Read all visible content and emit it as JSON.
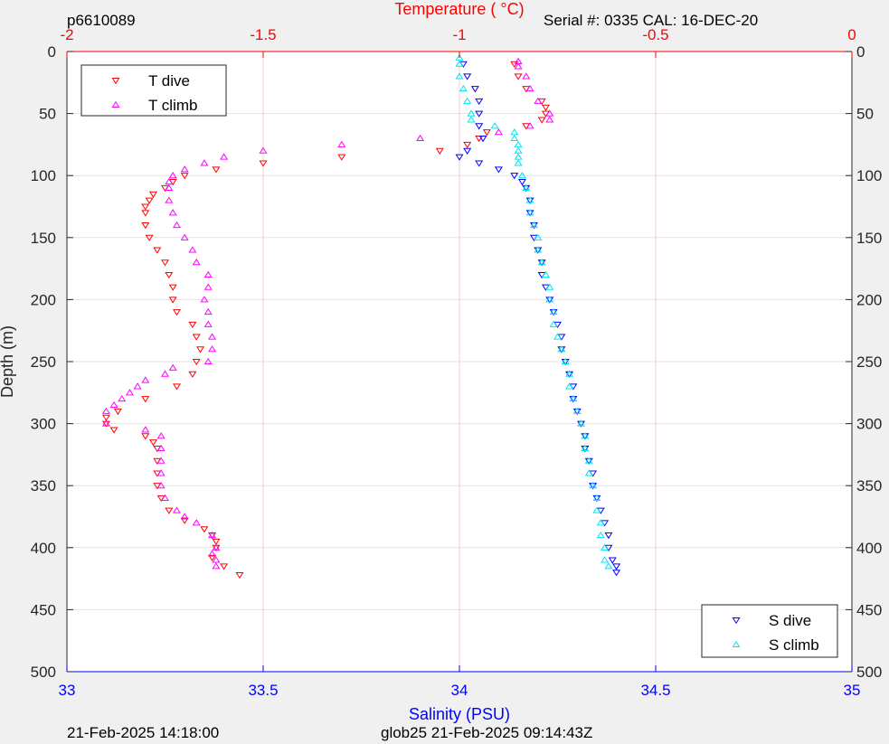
{
  "header": {
    "glider_id": "p6610089",
    "serial_cal": "Serial #: 0335  CAL: 16-DEC-20"
  },
  "footer": {
    "left_timestamp": "21-Feb-2025 14:18:00",
    "center_label": "glob25 21-Feb-2025 09:14:43Z"
  },
  "colors": {
    "t_dive": "#ff0000",
    "t_climb": "#ff00ff",
    "s_dive": "#0000ff",
    "s_climb": "#00e5ee",
    "temperature_axis": "#ff0000",
    "salinity_axis": "#0000ff"
  },
  "chart_data": {
    "type": "scatter",
    "y_axis": {
      "label": "Depth (m)",
      "range": [
        0,
        500
      ],
      "reversed": true,
      "ticks": [
        0,
        50,
        100,
        150,
        200,
        250,
        300,
        350,
        400,
        450,
        500
      ]
    },
    "x_axis_top": {
      "label": "Temperature (    °C)",
      "range": [
        -2,
        0
      ],
      "ticks": [
        -2,
        -1.5,
        -1,
        -0.5,
        0
      ],
      "tick_labels": [
        "-2",
        "-1.5",
        "-1",
        "-0.5",
        "0"
      ]
    },
    "x_axis_bottom": {
      "label": "Salinity (PSU)",
      "range": [
        33,
        35
      ],
      "ticks": [
        33,
        33.5,
        34,
        34.5,
        35
      ],
      "tick_labels": [
        "33",
        "33.5",
        "34",
        "34.5",
        "35"
      ]
    },
    "grid": true,
    "legends": [
      {
        "placement": "top-left",
        "entries": [
          "T dive",
          "T climb"
        ]
      },
      {
        "placement": "bottom-right",
        "entries": [
          "S dive",
          "S climb"
        ]
      }
    ],
    "series": [
      {
        "name": "T dive",
        "axis": "temperature",
        "marker": "triangle-down",
        "points": [
          [
            10,
            -0.86
          ],
          [
            20,
            -0.85
          ],
          [
            30,
            -0.83
          ],
          [
            40,
            -0.79
          ],
          [
            45,
            -0.78
          ],
          [
            50,
            -0.78
          ],
          [
            55,
            -0.79
          ],
          [
            60,
            -0.83
          ],
          [
            65,
            -0.93
          ],
          [
            70,
            -0.95
          ],
          [
            75,
            -0.98
          ],
          [
            80,
            -1.05
          ],
          [
            85,
            -1.3
          ],
          [
            90,
            -1.5
          ],
          [
            95,
            -1.62
          ],
          [
            100,
            -1.7
          ],
          [
            105,
            -1.73
          ],
          [
            110,
            -1.75
          ],
          [
            115,
            -1.78
          ],
          [
            120,
            -1.79
          ],
          [
            125,
            -1.8
          ],
          [
            130,
            -1.8
          ],
          [
            140,
            -1.8
          ],
          [
            150,
            -1.79
          ],
          [
            160,
            -1.77
          ],
          [
            170,
            -1.75
          ],
          [
            180,
            -1.74
          ],
          [
            190,
            -1.73
          ],
          [
            200,
            -1.73
          ],
          [
            210,
            -1.72
          ],
          [
            220,
            -1.68
          ],
          [
            230,
            -1.67
          ],
          [
            240,
            -1.66
          ],
          [
            250,
            -1.67
          ],
          [
            260,
            -1.68
          ],
          [
            270,
            -1.72
          ],
          [
            280,
            -1.8
          ],
          [
            290,
            -1.87
          ],
          [
            295,
            -1.9
          ],
          [
            300,
            -1.9
          ],
          [
            305,
            -1.88
          ],
          [
            310,
            -1.8
          ],
          [
            315,
            -1.78
          ],
          [
            320,
            -1.77
          ],
          [
            330,
            -1.77
          ],
          [
            340,
            -1.77
          ],
          [
            350,
            -1.77
          ],
          [
            360,
            -1.76
          ],
          [
            370,
            -1.74
          ],
          [
            378,
            -1.7
          ],
          [
            385,
            -1.65
          ],
          [
            390,
            -1.63
          ],
          [
            395,
            -1.62
          ],
          [
            400,
            -1.62
          ],
          [
            408,
            -1.63
          ],
          [
            415,
            -1.6
          ],
          [
            422,
            -1.56
          ]
        ]
      },
      {
        "name": "T climb",
        "axis": "temperature",
        "marker": "triangle-up",
        "points": [
          [
            8,
            -0.85
          ],
          [
            12,
            -0.85
          ],
          [
            20,
            -0.83
          ],
          [
            30,
            -0.82
          ],
          [
            40,
            -0.8
          ],
          [
            50,
            -0.77
          ],
          [
            55,
            -0.77
          ],
          [
            60,
            -0.82
          ],
          [
            65,
            -0.9
          ],
          [
            70,
            -1.1
          ],
          [
            75,
            -1.3
          ],
          [
            80,
            -1.5
          ],
          [
            85,
            -1.6
          ],
          [
            90,
            -1.65
          ],
          [
            95,
            -1.7
          ],
          [
            100,
            -1.73
          ],
          [
            105,
            -1.74
          ],
          [
            110,
            -1.74
          ],
          [
            120,
            -1.74
          ],
          [
            130,
            -1.73
          ],
          [
            140,
            -1.72
          ],
          [
            150,
            -1.7
          ],
          [
            160,
            -1.68
          ],
          [
            170,
            -1.67
          ],
          [
            180,
            -1.64
          ],
          [
            190,
            -1.64
          ],
          [
            200,
            -1.65
          ],
          [
            210,
            -1.64
          ],
          [
            220,
            -1.64
          ],
          [
            230,
            -1.63
          ],
          [
            240,
            -1.63
          ],
          [
            250,
            -1.64
          ],
          [
            255,
            -1.73
          ],
          [
            260,
            -1.75
          ],
          [
            265,
            -1.8
          ],
          [
            270,
            -1.82
          ],
          [
            275,
            -1.84
          ],
          [
            280,
            -1.86
          ],
          [
            285,
            -1.88
          ],
          [
            290,
            -1.9
          ],
          [
            300,
            -1.9
          ],
          [
            305,
            -1.8
          ],
          [
            310,
            -1.76
          ],
          [
            320,
            -1.76
          ],
          [
            330,
            -1.76
          ],
          [
            340,
            -1.76
          ],
          [
            350,
            -1.76
          ],
          [
            360,
            -1.75
          ],
          [
            370,
            -1.72
          ],
          [
            375,
            -1.7
          ],
          [
            380,
            -1.67
          ],
          [
            390,
            -1.63
          ],
          [
            400,
            -1.62
          ],
          [
            405,
            -1.63
          ],
          [
            410,
            -1.62
          ],
          [
            415,
            -1.62
          ]
        ]
      },
      {
        "name": "S dive",
        "axis": "salinity",
        "marker": "triangle-down",
        "points": [
          [
            10,
            34.01
          ],
          [
            20,
            34.02
          ],
          [
            30,
            34.04
          ],
          [
            40,
            34.05
          ],
          [
            50,
            34.05
          ],
          [
            60,
            34.05
          ],
          [
            70,
            34.06
          ],
          [
            80,
            34.02
          ],
          [
            85,
            34.0
          ],
          [
            90,
            34.05
          ],
          [
            95,
            34.1
          ],
          [
            100,
            34.14
          ],
          [
            105,
            34.16
          ],
          [
            110,
            34.17
          ],
          [
            120,
            34.18
          ],
          [
            130,
            34.18
          ],
          [
            140,
            34.19
          ],
          [
            150,
            34.19
          ],
          [
            160,
            34.2
          ],
          [
            170,
            34.21
          ],
          [
            180,
            34.21
          ],
          [
            190,
            34.22
          ],
          [
            200,
            34.23
          ],
          [
            210,
            34.24
          ],
          [
            220,
            34.25
          ],
          [
            230,
            34.26
          ],
          [
            240,
            34.26
          ],
          [
            250,
            34.27
          ],
          [
            260,
            34.28
          ],
          [
            270,
            34.29
          ],
          [
            280,
            34.29
          ],
          [
            290,
            34.3
          ],
          [
            300,
            34.31
          ],
          [
            310,
            34.32
          ],
          [
            320,
            34.32
          ],
          [
            330,
            34.33
          ],
          [
            340,
            34.34
          ],
          [
            350,
            34.34
          ],
          [
            360,
            34.35
          ],
          [
            370,
            34.36
          ],
          [
            380,
            34.37
          ],
          [
            390,
            34.38
          ],
          [
            400,
            34.38
          ],
          [
            410,
            34.39
          ],
          [
            415,
            34.4
          ],
          [
            420,
            34.4
          ]
        ]
      },
      {
        "name": "S climb",
        "axis": "salinity",
        "marker": "triangle-up",
        "points": [
          [
            5,
            34.0
          ],
          [
            10,
            34.0
          ],
          [
            20,
            34.0
          ],
          [
            30,
            34.01
          ],
          [
            40,
            34.02
          ],
          [
            50,
            34.03
          ],
          [
            55,
            34.03
          ],
          [
            60,
            34.09
          ],
          [
            65,
            34.14
          ],
          [
            70,
            34.14
          ],
          [
            75,
            34.15
          ],
          [
            80,
            34.15
          ],
          [
            85,
            34.15
          ],
          [
            90,
            34.15
          ],
          [
            100,
            34.16
          ],
          [
            110,
            34.17
          ],
          [
            120,
            34.18
          ],
          [
            130,
            34.18
          ],
          [
            140,
            34.19
          ],
          [
            150,
            34.2
          ],
          [
            160,
            34.2
          ],
          [
            170,
            34.21
          ],
          [
            180,
            34.22
          ],
          [
            190,
            34.23
          ],
          [
            200,
            34.23
          ],
          [
            210,
            34.24
          ],
          [
            220,
            34.24
          ],
          [
            230,
            34.25
          ],
          [
            240,
            34.26
          ],
          [
            250,
            34.27
          ],
          [
            260,
            34.28
          ],
          [
            270,
            34.28
          ],
          [
            280,
            34.29
          ],
          [
            290,
            34.3
          ],
          [
            300,
            34.31
          ],
          [
            310,
            34.32
          ],
          [
            320,
            34.32
          ],
          [
            330,
            34.33
          ],
          [
            340,
            34.33
          ],
          [
            350,
            34.34
          ],
          [
            360,
            34.35
          ],
          [
            370,
            34.35
          ],
          [
            380,
            34.36
          ],
          [
            390,
            34.36
          ],
          [
            400,
            34.37
          ],
          [
            410,
            34.37
          ],
          [
            415,
            34.38
          ]
        ]
      }
    ]
  }
}
